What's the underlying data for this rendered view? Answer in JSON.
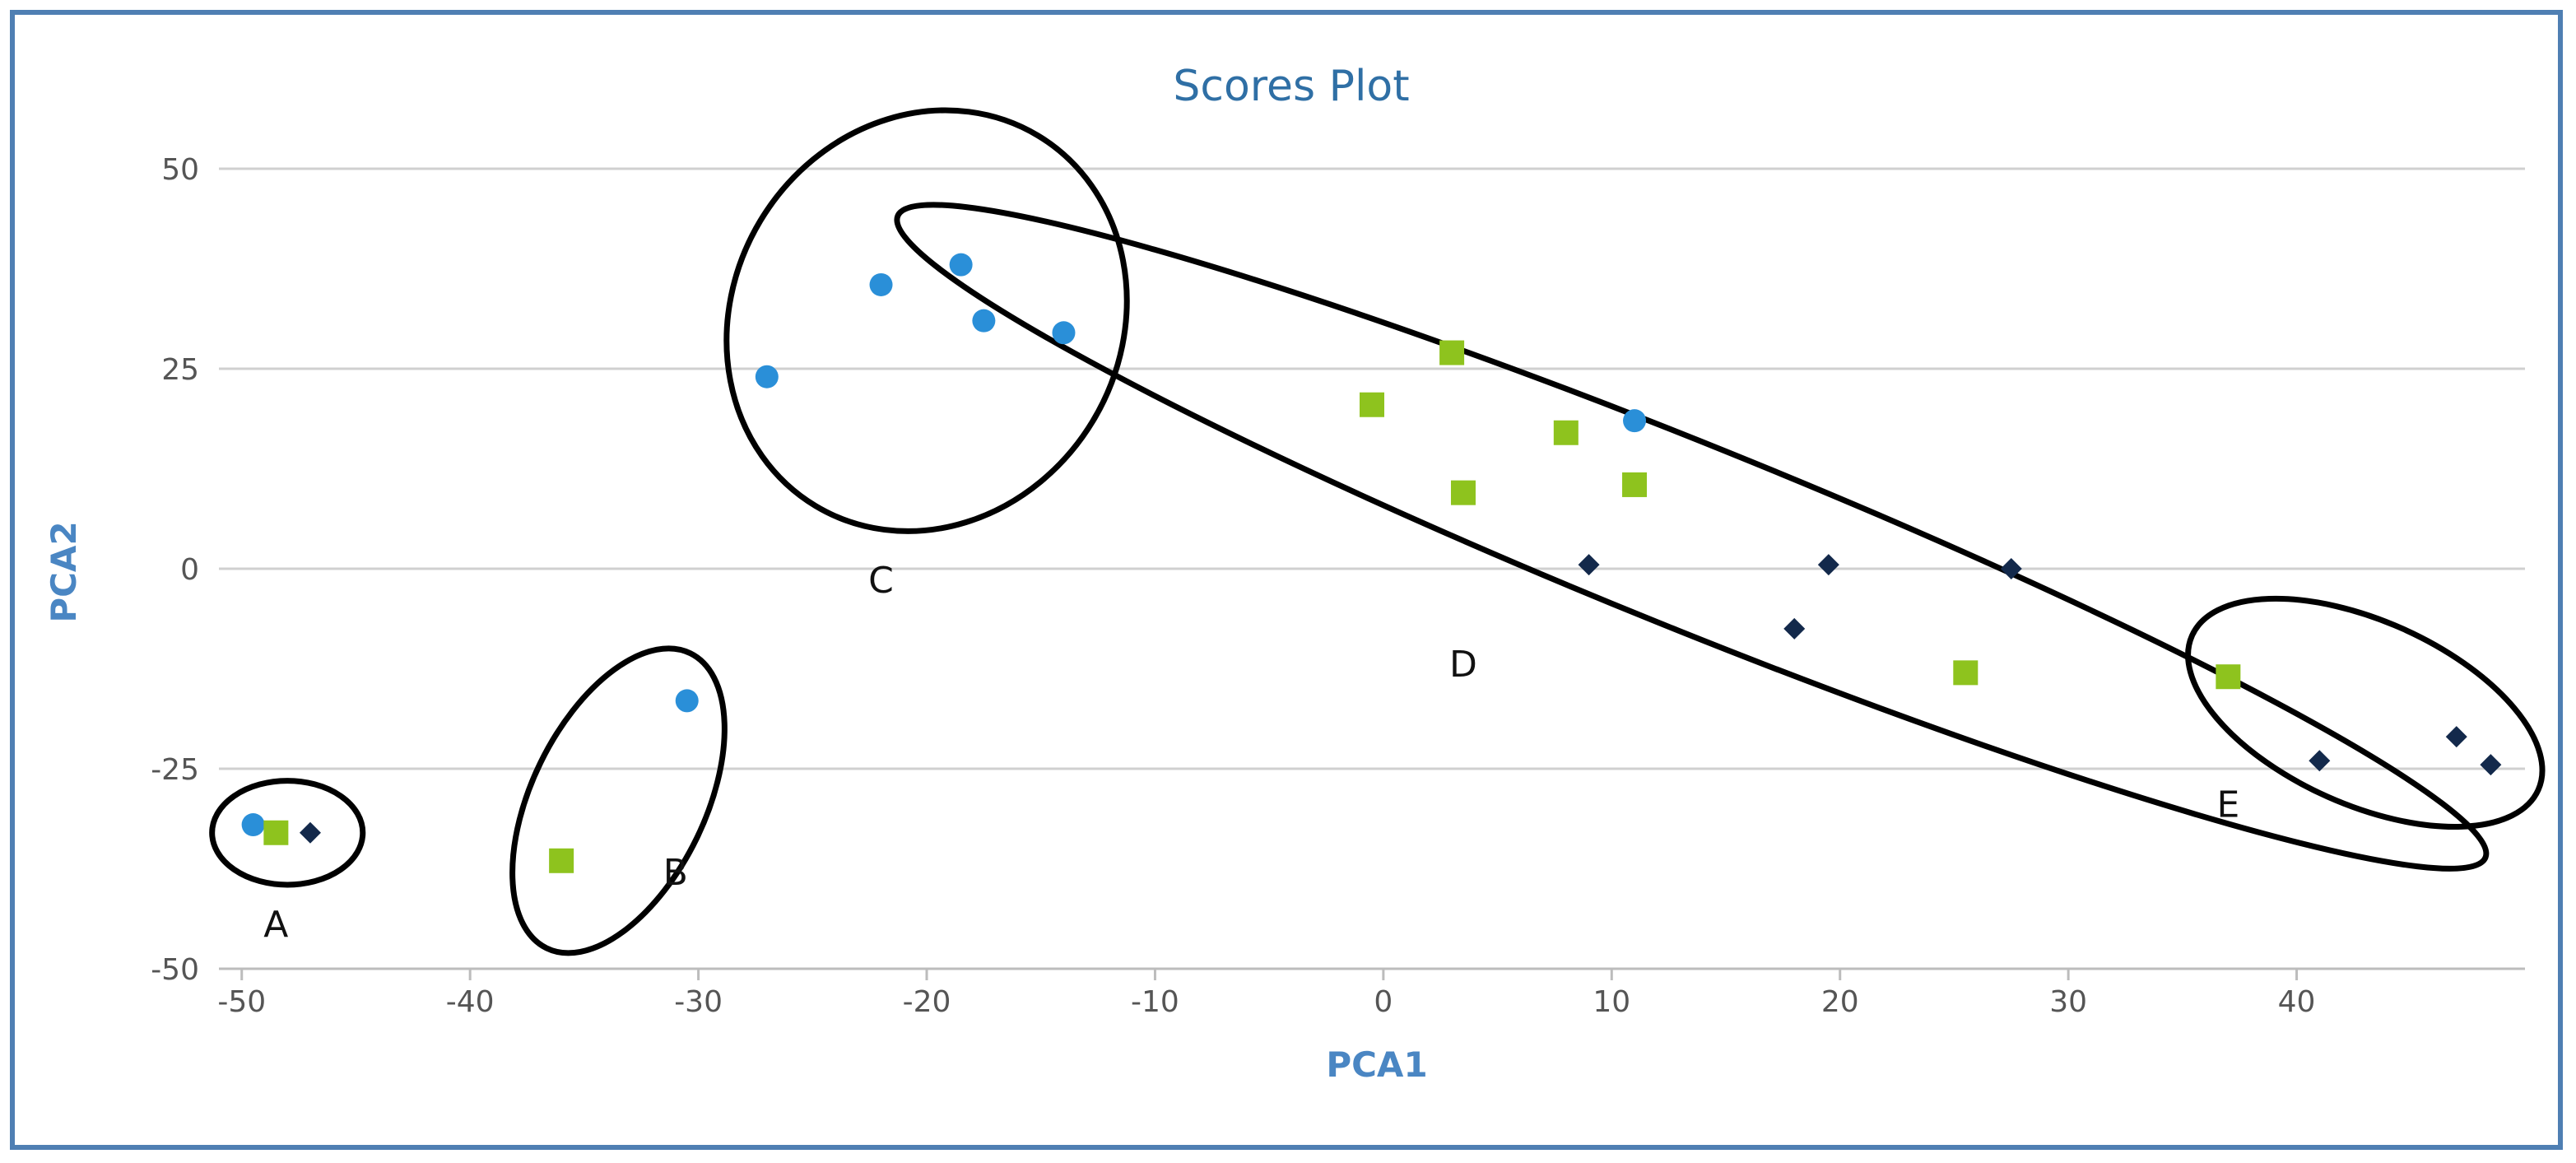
{
  "chart_data": {
    "type": "scatter",
    "title": "Scores Plot",
    "xlabel": "PCA1",
    "ylabel": "PCA2",
    "xlim": [
      -51,
      50
    ],
    "ylim": [
      -50,
      50
    ],
    "xticks": [
      -50,
      -40,
      -30,
      -20,
      -10,
      0,
      10,
      20,
      30,
      40
    ],
    "yticks": [
      50,
      25,
      0,
      -25,
      -50
    ],
    "grid": "horizontal",
    "legend": "none",
    "colors": {
      "circle": "#2a8fd8",
      "square": "#8ec31e",
      "diamond": "#13294b",
      "ellipse": "#000000",
      "title": "#2f6fa5",
      "axis_title": "#4a86c3",
      "grid": "#d0d0d0"
    },
    "series": [
      {
        "marker": "circle",
        "color": "#2a8fd8",
        "points": [
          [
            -49.5,
            -32
          ],
          [
            -30.5,
            -16.5
          ],
          [
            -27,
            24
          ],
          [
            -22,
            35.5
          ],
          [
            -18.5,
            38
          ],
          [
            -17.5,
            31
          ],
          [
            -14,
            29.5
          ],
          [
            11,
            18.5
          ]
        ]
      },
      {
        "marker": "square",
        "color": "#8ec31e",
        "points": [
          [
            -48.5,
            -33
          ],
          [
            -36,
            -36.5
          ],
          [
            -0.5,
            20.5
          ],
          [
            3,
            27
          ],
          [
            3.5,
            9.5
          ],
          [
            8,
            17
          ],
          [
            11,
            10.5
          ],
          [
            25.5,
            -13
          ],
          [
            37,
            -13.5
          ]
        ]
      },
      {
        "marker": "diamond",
        "color": "#13294b",
        "points": [
          [
            -47,
            -33
          ],
          [
            9,
            0.5
          ],
          [
            18,
            -7.5
          ],
          [
            19.5,
            0.5
          ],
          [
            27.5,
            0
          ],
          [
            41,
            -24
          ],
          [
            47,
            -21
          ],
          [
            48.5,
            -24.5
          ]
        ]
      }
    ],
    "groups": [
      {
        "label": "A",
        "cx": -48,
        "cy": -33,
        "rx": 3.3,
        "ry": 6.5,
        "rot": 0,
        "lx": -48.5,
        "ly": -46
      },
      {
        "label": "B",
        "cx": -33.5,
        "cy": -29,
        "rx": 3.8,
        "ry": 20.5,
        "rot": 26,
        "lx": -31,
        "ly": -39.5
      },
      {
        "label": "C",
        "cx": -20,
        "cy": 31,
        "rx": 8.5,
        "ry": 27,
        "rot": 31,
        "lx": -22,
        "ly": -3
      },
      {
        "label": "D",
        "cx": 13.5,
        "cy": 4,
        "rx": 37.5,
        "ry": 11.5,
        "rot": 22,
        "lx": 3.5,
        "ly": -13.5
      },
      {
        "label": "E",
        "cx": 43,
        "cy": -18,
        "rx": 8.3,
        "ry": 11.5,
        "rot": 24,
        "lx": 37,
        "ly": -31
      }
    ]
  }
}
